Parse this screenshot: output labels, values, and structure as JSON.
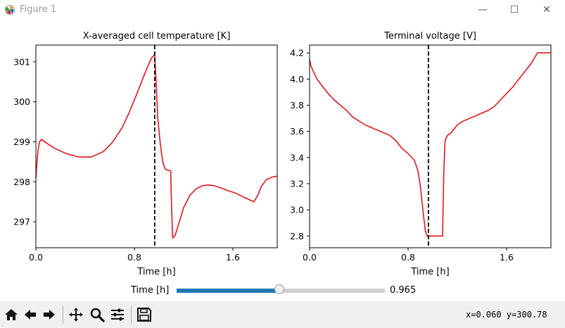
{
  "window": {
    "title": "Figure 1",
    "minimize_glyph": "—",
    "maximize_glyph": "☐",
    "close_glyph": "✕"
  },
  "toolbar": {
    "icons": [
      "home-icon",
      "back-arrow-icon",
      "forward-arrow-icon",
      "pan-icon",
      "zoom-icon",
      "configure-subplots-icon",
      "save-icon"
    ],
    "coords": "x=0.060 y=300.78"
  },
  "slider": {
    "label": "Time [h]",
    "value_text": "0.965",
    "min": 0,
    "max": 1.96,
    "value": 0.965,
    "fill_color": "#1f77b4"
  },
  "chart_data": [
    {
      "type": "line",
      "title": "X-averaged cell temperature [K]",
      "xlabel": "Time [h]",
      "ylabel": "",
      "xlim": [
        0,
        1.96
      ],
      "ylim": [
        296.35,
        301.42
      ],
      "xticks": [
        0,
        0.8,
        1.6
      ],
      "xtick_labels": [
        "0.0",
        "0.8",
        "1.6"
      ],
      "yticks": [
        297,
        298,
        299,
        300,
        301
      ],
      "ytick_labels": [
        "297",
        "298",
        "299",
        "300",
        "301"
      ],
      "grid": false,
      "line_color": "#e8151b",
      "vline": {
        "x": 0.965,
        "color": "#000000",
        "style": "dashed"
      },
      "series": [
        {
          "x": [
            0,
            0.01,
            0.02,
            0.03,
            0.045,
            0.06,
            0.09,
            0.15,
            0.25,
            0.35,
            0.45,
            0.55,
            0.62,
            0.7,
            0.76,
            0.82,
            0.87,
            0.91,
            0.94,
            0.965,
            0.975,
            0.99,
            1.01,
            1.03,
            1.05,
            1.08,
            1.095,
            1.1,
            1.11,
            1.13,
            1.16,
            1.2,
            1.25,
            1.3,
            1.35,
            1.4,
            1.45,
            1.5,
            1.55,
            1.62,
            1.7,
            1.77,
            1.8,
            1.83,
            1.87,
            1.92,
            1.96
          ],
          "y": [
            298.1,
            298.55,
            298.85,
            299.0,
            299.06,
            299.03,
            298.96,
            298.84,
            298.7,
            298.62,
            298.62,
            298.76,
            298.98,
            299.35,
            299.75,
            300.2,
            300.6,
            300.9,
            301.1,
            301.18,
            300.6,
            299.6,
            298.95,
            298.5,
            298.32,
            298.28,
            298.27,
            297.6,
            296.6,
            296.65,
            296.95,
            297.35,
            297.66,
            297.82,
            297.9,
            297.92,
            297.9,
            297.85,
            297.79,
            297.72,
            297.6,
            297.5,
            297.65,
            297.88,
            298.05,
            298.12,
            298.14
          ]
        }
      ]
    },
    {
      "type": "line",
      "title": "Terminal voltage [V]",
      "xlabel": "Time [h]",
      "ylabel": "",
      "xlim": [
        0,
        1.96
      ],
      "ylim": [
        2.71,
        4.26
      ],
      "xticks": [
        0,
        0.8,
        1.6
      ],
      "xtick_labels": [
        "0.0",
        "0.8",
        "1.6"
      ],
      "yticks": [
        2.8,
        3.0,
        3.2,
        3.4,
        3.6,
        3.8,
        4.0,
        4.2
      ],
      "ytick_labels": [
        "2.8",
        "3.0",
        "3.2",
        "3.4",
        "3.6",
        "3.8",
        "4.0",
        "4.2"
      ],
      "grid": false,
      "line_color": "#e8151b",
      "vline": {
        "x": 0.965,
        "color": "#000000",
        "style": "dashed"
      },
      "series": [
        {
          "x": [
            0,
            0.01,
            0.03,
            0.06,
            0.1,
            0.15,
            0.2,
            0.25,
            0.3,
            0.35,
            0.4,
            0.45,
            0.5,
            0.55,
            0.6,
            0.65,
            0.7,
            0.75,
            0.8,
            0.85,
            0.88,
            0.9,
            0.92,
            0.94,
            0.955,
            0.965,
            1.0,
            1.05,
            1.08,
            1.09,
            1.1,
            1.12,
            1.15,
            1.2,
            1.25,
            1.3,
            1.35,
            1.4,
            1.45,
            1.5,
            1.55,
            1.6,
            1.65,
            1.7,
            1.75,
            1.8,
            1.85,
            1.96
          ],
          "y": [
            4.15,
            4.1,
            4.06,
            4.0,
            3.95,
            3.89,
            3.84,
            3.8,
            3.76,
            3.71,
            3.68,
            3.65,
            3.63,
            3.61,
            3.59,
            3.57,
            3.53,
            3.47,
            3.43,
            3.38,
            3.3,
            3.18,
            3.0,
            2.84,
            2.8,
            2.8,
            2.8,
            2.8,
            2.8,
            3.3,
            3.53,
            3.57,
            3.59,
            3.65,
            3.68,
            3.7,
            3.72,
            3.74,
            3.76,
            3.79,
            3.84,
            3.89,
            3.94,
            4.0,
            4.06,
            4.12,
            4.2,
            4.2
          ]
        }
      ]
    }
  ]
}
